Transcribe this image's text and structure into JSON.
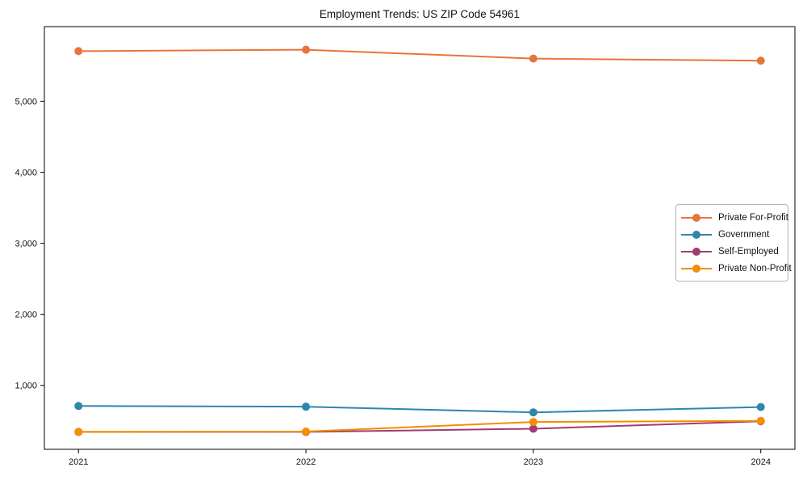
{
  "chart_data": {
    "type": "line",
    "title": "Employment Trends: US ZIP Code 54961",
    "xlabel": "",
    "ylabel": "",
    "x": [
      "2021",
      "2022",
      "2023",
      "2024"
    ],
    "series": [
      {
        "name": "Private For-Profit",
        "color": "#E8743B",
        "values": [
          5705,
          5725,
          5600,
          5570
        ]
      },
      {
        "name": "Government",
        "color": "#2E86AB",
        "values": [
          710,
          700,
          620,
          695
        ]
      },
      {
        "name": "Self-Employed",
        "color": "#A23B72",
        "values": [
          345,
          345,
          390,
          495
        ]
      },
      {
        "name": "Private Non-Profit",
        "color": "#F18F01",
        "values": [
          345,
          350,
          485,
          500
        ]
      }
    ],
    "yticks": [
      1000,
      2000,
      3000,
      4000,
      5000
    ],
    "ytick_labels": [
      "1,000",
      "2,000",
      "3,000",
      "4,000",
      "5,000"
    ],
    "xlim": [
      2020.85,
      2024.15
    ],
    "ylim": [
      100,
      6050
    ],
    "grid": false,
    "legend_position": "center-right",
    "frame": "box",
    "marker": "circle"
  }
}
